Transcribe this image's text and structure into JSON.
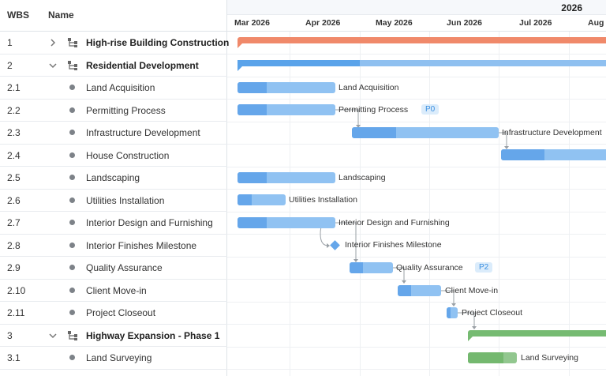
{
  "grid": {
    "header": {
      "wbs": "WBS",
      "name": "Name"
    },
    "rows": [
      {
        "wbs": "1",
        "name": "High-rise Building Construction",
        "type": "parent",
        "expanded": false
      },
      {
        "wbs": "2",
        "name": "Residential Development",
        "type": "parent",
        "expanded": true
      },
      {
        "wbs": "2.1",
        "name": "Land Acquisition",
        "type": "task"
      },
      {
        "wbs": "2.2",
        "name": "Permitting Process",
        "type": "task"
      },
      {
        "wbs": "2.3",
        "name": "Infrastructure Development",
        "type": "task"
      },
      {
        "wbs": "2.4",
        "name": "House Construction",
        "type": "task"
      },
      {
        "wbs": "2.5",
        "name": "Landscaping",
        "type": "task"
      },
      {
        "wbs": "2.6",
        "name": "Utilities Installation",
        "type": "task"
      },
      {
        "wbs": "2.7",
        "name": "Interior Design and Furnishing",
        "type": "task"
      },
      {
        "wbs": "2.8",
        "name": "Interior Finishes Milestone",
        "type": "task"
      },
      {
        "wbs": "2.9",
        "name": "Quality Assurance",
        "type": "task"
      },
      {
        "wbs": "2.10",
        "name": "Client Move-in",
        "type": "task"
      },
      {
        "wbs": "2.11",
        "name": "Project Closeout",
        "type": "task"
      },
      {
        "wbs": "3",
        "name": "Highway Expansion - Phase 1",
        "type": "parent",
        "expanded": true
      },
      {
        "wbs": "3.1",
        "name": "Land Surveying",
        "type": "task"
      }
    ]
  },
  "timeline": {
    "year": "2026",
    "months": [
      "Mar 2026",
      "Apr 2026",
      "May 2026",
      "Jun 2026",
      "Jul 2026",
      "Aug"
    ],
    "task_labels": {
      "t21": "Land Acquisition",
      "t22": "Permitting Process",
      "t23": "Infrastructure Development",
      "t25": "Landscaping",
      "t26": "Utilities Installation",
      "t27": "Interior Design and Furnishing",
      "t28": "Interior Finishes Milestone",
      "t29": "Quality Assurance",
      "t210": "Client Move-in",
      "t211": "Project Closeout",
      "t31": "Land Surveying"
    },
    "priority_tags": {
      "t22": "P0",
      "t29": "P2"
    }
  },
  "colors": {
    "summary_orange": "#f0896a",
    "summary_blue": "#5aa3ea",
    "summary_green": "#76bb72",
    "task_blue": "#90c2f2",
    "task_blue_progress": "#65a6ea",
    "task_green": "#92c78f"
  }
}
